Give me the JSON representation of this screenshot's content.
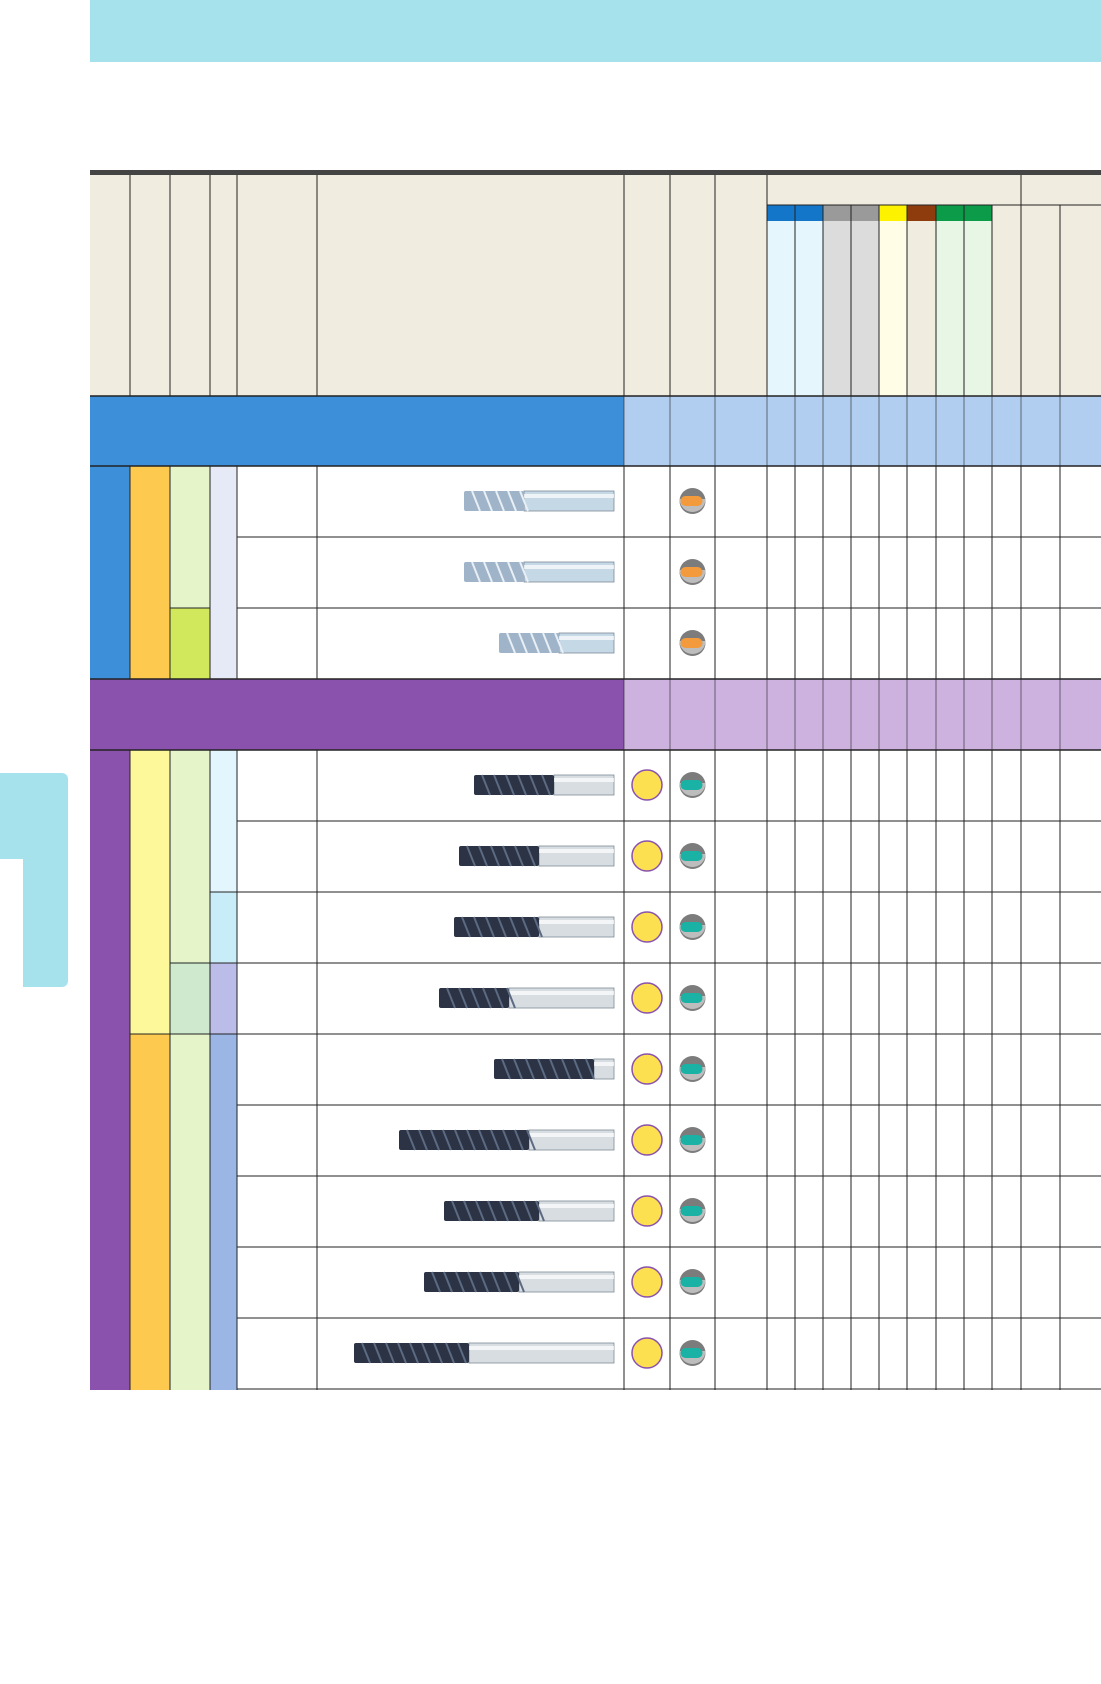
{
  "colors": {
    "header_bg": "#f1ece0",
    "top_band": "#a6e2ec",
    "group_blue": "#3d8fd9",
    "group_blue_light": "#b1cdef",
    "group_purple": "#8a51ad",
    "group_purple_light": "#cdb1de",
    "orange_cell": "#fdc94f",
    "yellow_cell": "#fdf99a",
    "lightgreen_cell": "#e6f4c9",
    "lime_cell": "#d2e85c",
    "mint_cell": "#cfe9ce",
    "lavender_cell": "#e6eaf6",
    "lightblue_cell": "#e4f6fd",
    "cyan_cell": "#c9ecf9",
    "periwinkle_cell": "#bcbce8",
    "blue_cell": "#9bb6e5",
    "material_key": [
      "#1376c9",
      "#9a9a9a",
      "#fdf200",
      "#8e3c0d",
      "#0b9b49"
    ],
    "material_tint": [
      "#e6f6fd",
      "#e6f6fd",
      "#dcdcdc",
      "#dcdcdc",
      "#fffde5",
      "#f1ece0",
      "#e8f6e5",
      "#e8f6e5"
    ],
    "coating_orange": "#f39a3c",
    "coating_teal": "#19b2a4",
    "gold_circle": "#fde04f"
  },
  "table": {
    "groups": [
      {
        "name": "group-blue",
        "rows": [
          {
            "tool_icon": "endmill-aluminium-rougher-icon",
            "coating": "orange",
            "circle": false
          },
          {
            "tool_icon": "endmill-aluminium-wavy-icon",
            "coating": "orange",
            "circle": false
          },
          {
            "tool_icon": "endmill-aluminium-short-icon",
            "coating": "orange",
            "circle": false
          }
        ]
      },
      {
        "name": "group-purple",
        "rows": [
          {
            "tool_icon": "endmill-2flute-icon",
            "coating": "teal",
            "circle": true
          },
          {
            "tool_icon": "endmill-2flute-long-icon",
            "coating": "teal",
            "circle": true
          },
          {
            "tool_icon": "endmill-3flute-icon",
            "coating": "teal",
            "circle": true
          },
          {
            "tool_icon": "endmill-4flute-icon",
            "coating": "teal",
            "circle": true
          },
          {
            "tool_icon": "endmill-short-rougher-icon",
            "coating": "teal",
            "circle": true
          },
          {
            "tool_icon": "endmill-rougher-long-icon",
            "coating": "teal",
            "circle": true
          },
          {
            "tool_icon": "endmill-fine-rougher-icon",
            "coating": "teal",
            "circle": true
          },
          {
            "tool_icon": "endmill-rougher-icon",
            "coating": "teal",
            "circle": true
          },
          {
            "tool_icon": "endmill-extra-long-rougher-icon",
            "coating": "teal",
            "circle": true
          }
        ]
      }
    ]
  }
}
